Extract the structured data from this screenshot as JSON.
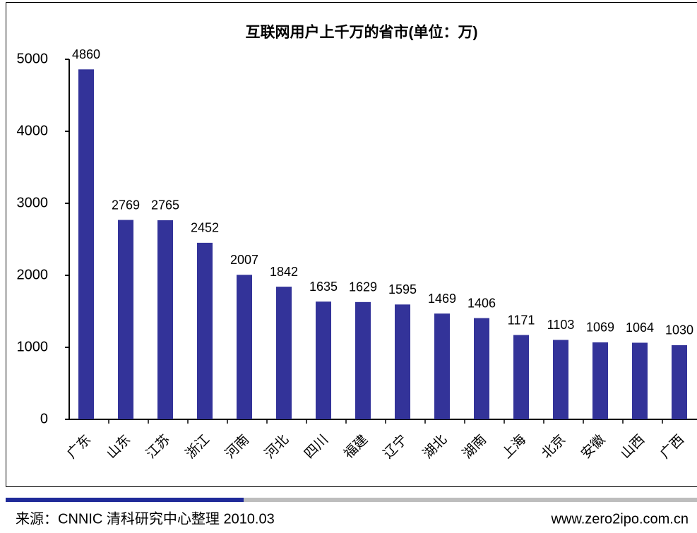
{
  "chart_data": {
    "type": "bar",
    "title": "互联网用户上千万的省市(单位：万)",
    "categories": [
      "广东",
      "山东",
      "江苏",
      "浙江",
      "河南",
      "河北",
      "四川",
      "福建",
      "辽宁",
      "湖北",
      "湖南",
      "上海",
      "北京",
      "安徽",
      "山西",
      "广西"
    ],
    "values": [
      4860,
      2769,
      2765,
      2452,
      2007,
      1842,
      1635,
      1629,
      1595,
      1469,
      1406,
      1171,
      1103,
      1069,
      1064,
      1030
    ],
    "color": "#333399",
    "ylim": [
      0,
      5000
    ],
    "yticks": [
      0,
      1000,
      2000,
      3000,
      4000,
      5000
    ],
    "grid": false
  },
  "footer": {
    "source": "来源：CNNIC 清科研究中心整理 2010.03",
    "url": "www.zero2ipo.com.cn"
  }
}
